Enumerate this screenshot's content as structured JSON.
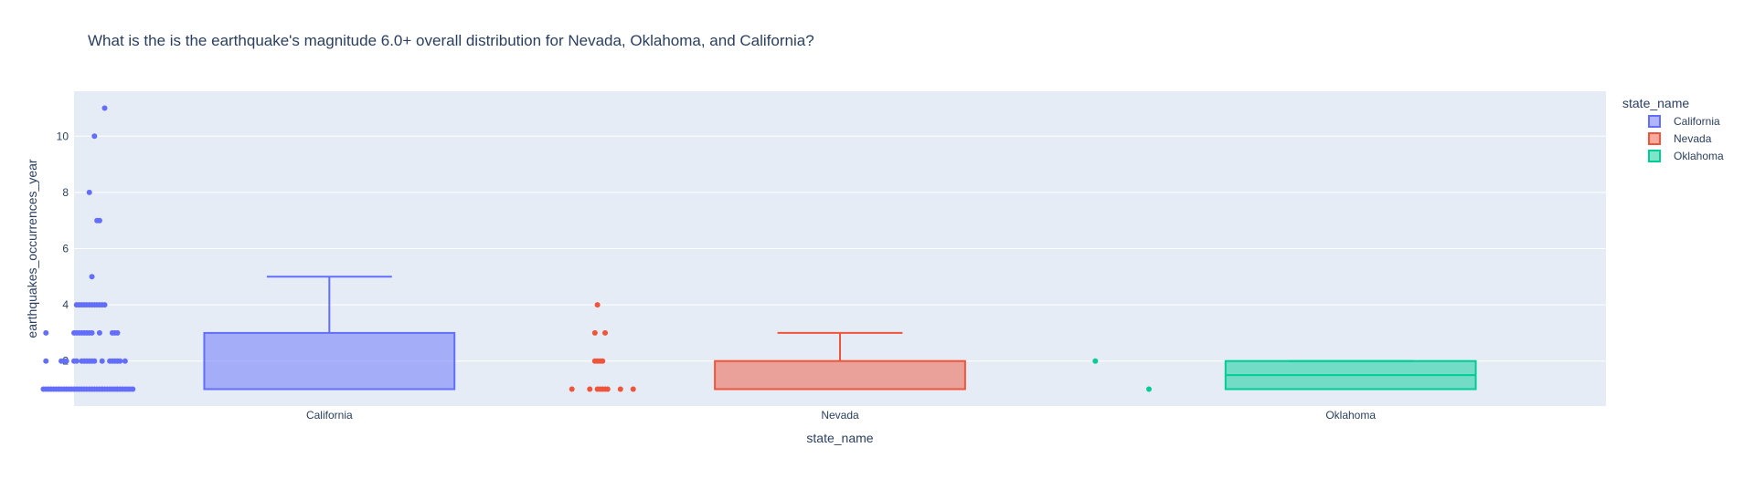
{
  "chart_data": {
    "type": "box",
    "title": "What is the is the earthquake's magnitude 6.0+ overall distribution for Nevada, Oklahoma, and California?",
    "xlabel": "state_name",
    "ylabel": "earthquakes_occurrences_year",
    "ylim": [
      0.4,
      11.6
    ],
    "yticks": [
      2,
      4,
      6,
      8,
      10
    ],
    "grid": true,
    "legend_title": "state_name",
    "legend_position": "right",
    "series": [
      {
        "name": "California",
        "color": "#636efa",
        "fill": "rgba(99,110,250,0.5)",
        "box": {
          "lowerfence": 1,
          "q1": 1,
          "median": 1,
          "q3": 3,
          "upperfence": 5
        },
        "points": [
          {
            "x": -0.88,
            "y": 11
          },
          {
            "x": -0.92,
            "y": 10
          },
          {
            "x": -0.94,
            "y": 8
          },
          {
            "x": -0.91,
            "y": 7
          },
          {
            "x": -0.9,
            "y": 7
          },
          {
            "x": -0.93,
            "y": 5
          },
          {
            "x": -0.99,
            "y": 4
          },
          {
            "x": -0.98,
            "y": 4
          },
          {
            "x": -0.97,
            "y": 4
          },
          {
            "x": -0.96,
            "y": 4
          },
          {
            "x": -0.95,
            "y": 4
          },
          {
            "x": -0.94,
            "y": 4
          },
          {
            "x": -0.93,
            "y": 4
          },
          {
            "x": -0.92,
            "y": 4
          },
          {
            "x": -0.91,
            "y": 4
          },
          {
            "x": -0.9,
            "y": 4
          },
          {
            "x": -0.89,
            "y": 4
          },
          {
            "x": -0.88,
            "y": 4
          },
          {
            "x": -1.11,
            "y": 3
          },
          {
            "x": -1.0,
            "y": 3
          },
          {
            "x": -0.99,
            "y": 3
          },
          {
            "x": -0.98,
            "y": 3
          },
          {
            "x": -0.97,
            "y": 3
          },
          {
            "x": -0.96,
            "y": 3
          },
          {
            "x": -0.95,
            "y": 3
          },
          {
            "x": -0.94,
            "y": 3
          },
          {
            "x": -0.93,
            "y": 3
          },
          {
            "x": -0.9,
            "y": 3
          },
          {
            "x": -0.85,
            "y": 3
          },
          {
            "x": -0.84,
            "y": 3
          },
          {
            "x": -0.83,
            "y": 3
          },
          {
            "x": -1.11,
            "y": 2
          },
          {
            "x": -1.05,
            "y": 2
          },
          {
            "x": -1.04,
            "y": 2
          },
          {
            "x": -1.03,
            "y": 2
          },
          {
            "x": -1.0,
            "y": 2
          },
          {
            "x": -0.99,
            "y": 2
          },
          {
            "x": -0.97,
            "y": 2
          },
          {
            "x": -0.96,
            "y": 2
          },
          {
            "x": -0.95,
            "y": 2
          },
          {
            "x": -0.94,
            "y": 2
          },
          {
            "x": -0.93,
            "y": 2
          },
          {
            "x": -0.92,
            "y": 2
          },
          {
            "x": -0.89,
            "y": 2
          },
          {
            "x": -0.86,
            "y": 2
          },
          {
            "x": -0.85,
            "y": 2
          },
          {
            "x": -0.84,
            "y": 2
          },
          {
            "x": -0.83,
            "y": 2
          },
          {
            "x": -0.82,
            "y": 2
          },
          {
            "x": -0.8,
            "y": 2
          },
          {
            "x": -1.12,
            "y": 1
          },
          {
            "x": -1.11,
            "y": 1
          },
          {
            "x": -1.1,
            "y": 1
          },
          {
            "x": -1.09,
            "y": 1
          },
          {
            "x": -1.08,
            "y": 1
          },
          {
            "x": -1.07,
            "y": 1
          },
          {
            "x": -1.06,
            "y": 1
          },
          {
            "x": -1.05,
            "y": 1
          },
          {
            "x": -1.04,
            "y": 1
          },
          {
            "x": -1.03,
            "y": 1
          },
          {
            "x": -1.02,
            "y": 1
          },
          {
            "x": -1.01,
            "y": 1
          },
          {
            "x": -1.0,
            "y": 1
          },
          {
            "x": -0.99,
            "y": 1
          },
          {
            "x": -0.98,
            "y": 1
          },
          {
            "x": -0.97,
            "y": 1
          },
          {
            "x": -0.96,
            "y": 1
          },
          {
            "x": -0.95,
            "y": 1
          },
          {
            "x": -0.94,
            "y": 1
          },
          {
            "x": -0.93,
            "y": 1
          },
          {
            "x": -0.92,
            "y": 1
          },
          {
            "x": -0.91,
            "y": 1
          },
          {
            "x": -0.9,
            "y": 1
          },
          {
            "x": -0.89,
            "y": 1
          },
          {
            "x": -0.88,
            "y": 1
          },
          {
            "x": -0.87,
            "y": 1
          },
          {
            "x": -0.86,
            "y": 1
          },
          {
            "x": -0.85,
            "y": 1
          },
          {
            "x": -0.84,
            "y": 1
          },
          {
            "x": -0.83,
            "y": 1
          },
          {
            "x": -0.82,
            "y": 1
          },
          {
            "x": -0.81,
            "y": 1
          },
          {
            "x": -0.8,
            "y": 1
          },
          {
            "x": -0.79,
            "y": 1
          },
          {
            "x": -0.78,
            "y": 1
          },
          {
            "x": -0.77,
            "y": 1
          }
        ]
      },
      {
        "name": "Nevada",
        "color": "#ef553b",
        "fill": "rgba(239,85,59,0.5)",
        "box": {
          "lowerfence": 1,
          "q1": 1,
          "median": 1,
          "q3": 2,
          "upperfence": 3
        },
        "points": [
          {
            "x": -0.95,
            "y": 4
          },
          {
            "x": -0.96,
            "y": 3
          },
          {
            "x": -0.92,
            "y": 3
          },
          {
            "x": -0.96,
            "y": 2
          },
          {
            "x": -0.95,
            "y": 2
          },
          {
            "x": -0.94,
            "y": 2
          },
          {
            "x": -0.93,
            "y": 2
          },
          {
            "x": -1.05,
            "y": 1
          },
          {
            "x": -0.98,
            "y": 1
          },
          {
            "x": -0.95,
            "y": 1
          },
          {
            "x": -0.94,
            "y": 1
          },
          {
            "x": -0.93,
            "y": 1
          },
          {
            "x": -0.92,
            "y": 1
          },
          {
            "x": -0.91,
            "y": 1
          },
          {
            "x": -0.86,
            "y": 1
          },
          {
            "x": -0.81,
            "y": 1
          }
        ]
      },
      {
        "name": "Oklahoma",
        "color": "#00cc96",
        "fill": "rgba(0,204,150,0.5)",
        "box": {
          "lowerfence": 1,
          "q1": 1,
          "median": 1.5,
          "q3": 2,
          "upperfence": 2
        },
        "points": [
          {
            "x": -1.0,
            "y": 2
          },
          {
            "x": -0.79,
            "y": 1
          }
        ]
      }
    ]
  }
}
